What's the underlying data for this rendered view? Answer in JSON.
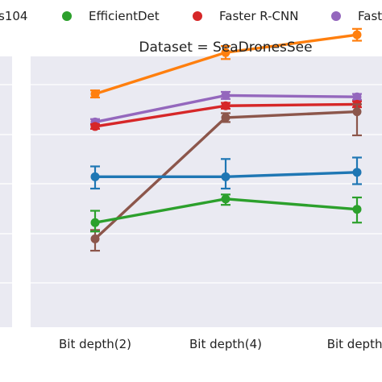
{
  "legend": {
    "items": [
      {
        "label": "s104",
        "color": "#8c564b",
        "marker": false
      },
      {
        "label": "EfficientDet",
        "color": "#2ca02c",
        "marker": true
      },
      {
        "label": "Faster R-CNN",
        "color": "#d62728",
        "marker": true
      },
      {
        "label": "Fast",
        "color": "#9467bd",
        "marker": true
      }
    ]
  },
  "chart_data": {
    "type": "line",
    "title": "Dataset = SeaDronesSee",
    "categories": [
      "Bit depth(2)",
      "Bit depth(4)",
      "Bit depth("
    ],
    "xlabel": "",
    "ylabel": "",
    "ylim": [
      0,
      1
    ],
    "grid": true,
    "legend_position": "top",
    "series": [
      {
        "color": "#ff7f0e",
        "values": [
          0.805,
          0.945,
          1.005
        ],
        "err_low": [
          0.012,
          0.022,
          0.02
        ],
        "err_high": [
          0.012,
          0.022,
          0.02
        ]
      },
      {
        "color": "#9467bd",
        "values": [
          0.71,
          0.8,
          0.795
        ],
        "err_low": [
          0.01,
          0.012,
          0.01
        ],
        "err_high": [
          0.01,
          0.012,
          0.01
        ]
      },
      {
        "color": "#d62728",
        "values": [
          0.695,
          0.765,
          0.77
        ],
        "err_low": [
          0.008,
          0.01,
          0.01
        ],
        "err_high": [
          0.008,
          0.01,
          0.01
        ]
      },
      {
        "color": "#8c564b",
        "values": [
          0.315,
          0.725,
          0.745
        ],
        "err_low": [
          0.04,
          0.015,
          0.08
        ],
        "err_high": [
          0.03,
          0.015,
          0.025
        ]
      },
      {
        "color": "#1f77b4",
        "values": [
          0.525,
          0.525,
          0.54
        ],
        "err_low": [
          0.04,
          0.04,
          0.04
        ],
        "err_high": [
          0.035,
          0.06,
          0.05
        ]
      },
      {
        "color": "#2ca02c",
        "values": [
          0.37,
          0.45,
          0.415
        ],
        "err_low": [
          0.03,
          0.02,
          0.045
        ],
        "err_high": [
          0.04,
          0.015,
          0.04
        ]
      }
    ]
  }
}
